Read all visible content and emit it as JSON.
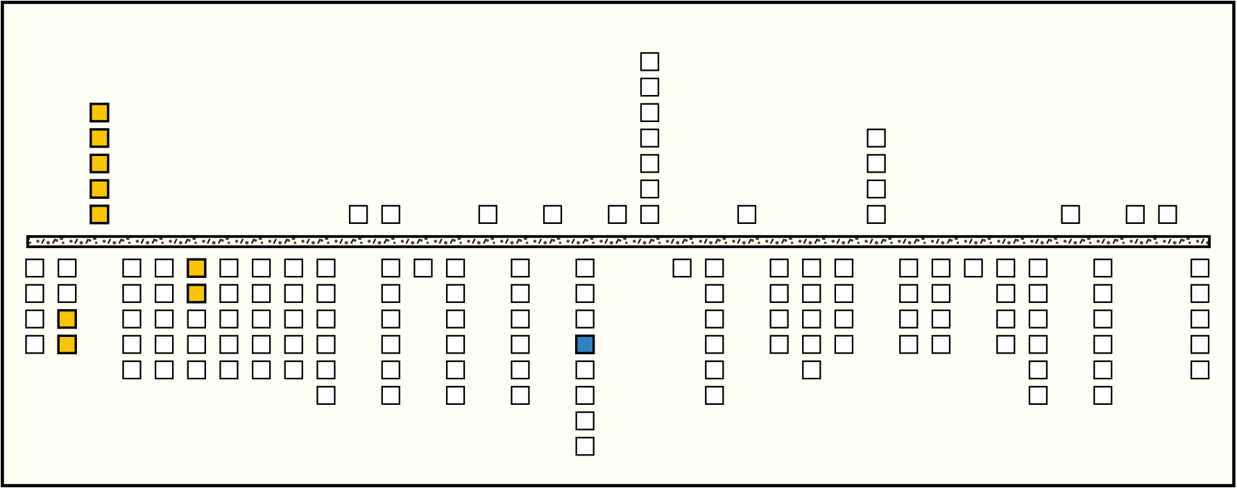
{
  "board": {
    "columns": [
      {
        "above": [],
        "below": [
          "empty",
          "empty",
          "empty",
          "empty"
        ]
      },
      {
        "above": [],
        "below": [
          "empty",
          "empty",
          "gold",
          "gold"
        ]
      },
      {
        "above": [
          "gold",
          "gold",
          "gold",
          "gold",
          "gold"
        ],
        "below": []
      },
      {
        "above": [],
        "below": [
          "empty",
          "empty",
          "empty",
          "empty",
          "empty"
        ]
      },
      {
        "above": [],
        "below": [
          "empty",
          "empty",
          "empty",
          "empty",
          "empty"
        ]
      },
      {
        "above": [],
        "below": [
          "gold",
          "gold",
          "empty",
          "empty",
          "empty"
        ]
      },
      {
        "above": [],
        "below": [
          "empty",
          "empty",
          "empty",
          "empty",
          "empty"
        ]
      },
      {
        "above": [],
        "below": [
          "empty",
          "empty",
          "empty",
          "empty",
          "empty"
        ]
      },
      {
        "above": [],
        "below": [
          "empty",
          "empty",
          "empty",
          "empty",
          "empty"
        ]
      },
      {
        "above": [],
        "below": [
          "empty",
          "empty",
          "empty",
          "empty",
          "empty",
          "empty"
        ]
      },
      {
        "above": [
          "empty"
        ],
        "below": []
      },
      {
        "above": [
          "empty"
        ],
        "below": [
          "empty",
          "empty",
          "empty",
          "empty",
          "empty",
          "empty"
        ]
      },
      {
        "above": [],
        "below": [
          "empty"
        ]
      },
      {
        "above": [],
        "below": [
          "empty",
          "empty",
          "empty",
          "empty",
          "empty",
          "empty"
        ]
      },
      {
        "above": [
          "empty"
        ],
        "below": []
      },
      {
        "above": [],
        "below": [
          "empty",
          "empty",
          "empty",
          "empty",
          "empty",
          "empty"
        ]
      },
      {
        "above": [
          "empty"
        ],
        "below": []
      },
      {
        "above": [],
        "below": [
          "empty",
          "empty",
          "empty",
          "blue",
          "empty",
          "empty",
          "empty",
          "empty"
        ]
      },
      {
        "above": [
          "empty"
        ],
        "below": []
      },
      {
        "above": [
          "empty",
          "empty",
          "empty",
          "empty",
          "empty",
          "empty",
          "empty"
        ],
        "below": []
      },
      {
        "above": [],
        "below": [
          "empty"
        ]
      },
      {
        "above": [],
        "below": [
          "empty",
          "empty",
          "empty",
          "empty",
          "empty",
          "empty"
        ]
      },
      {
        "above": [
          "empty"
        ],
        "below": []
      },
      {
        "above": [],
        "below": [
          "empty",
          "empty",
          "empty",
          "empty"
        ]
      },
      {
        "above": [],
        "below": [
          "empty",
          "empty",
          "empty",
          "empty",
          "empty"
        ]
      },
      {
        "above": [],
        "below": [
          "empty",
          "empty",
          "empty",
          "empty"
        ]
      },
      {
        "above": [
          "empty",
          "empty",
          "empty",
          "empty"
        ],
        "below": []
      },
      {
        "above": [],
        "below": [
          "empty",
          "empty",
          "empty",
          "empty"
        ]
      },
      {
        "above": [],
        "below": [
          "empty",
          "empty",
          "empty",
          "empty"
        ]
      },
      {
        "above": [],
        "below": [
          "empty"
        ]
      },
      {
        "above": [],
        "below": [
          "empty",
          "empty",
          "empty",
          "empty"
        ]
      },
      {
        "above": [],
        "below": [
          "empty",
          "empty",
          "empty",
          "empty",
          "empty",
          "empty"
        ]
      },
      {
        "above": [
          "empty"
        ],
        "below": []
      },
      {
        "above": [],
        "below": [
          "empty",
          "empty",
          "empty",
          "empty",
          "empty",
          "empty"
        ]
      },
      {
        "above": [
          "empty"
        ],
        "below": []
      },
      {
        "above": [
          "empty"
        ],
        "below": []
      },
      {
        "above": [],
        "below": [
          "empty",
          "empty",
          "empty",
          "empty",
          "empty"
        ]
      }
    ]
  }
}
